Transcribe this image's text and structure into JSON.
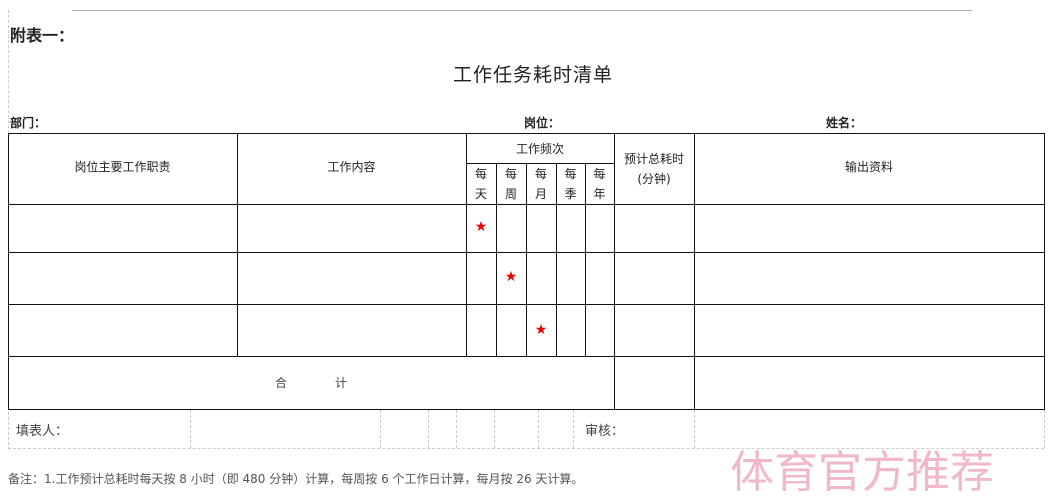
{
  "doc": {
    "appendix_label": "附表一：",
    "title": "工作任务耗时清单",
    "department_label": "部门：",
    "position_label": "岗位：",
    "name_label": "姓名：",
    "table": {
      "headers": {
        "duties": "岗位主要工作职责",
        "content": "工作内容",
        "frequency": "工作频次",
        "freq_cols": [
          "每天",
          "每周",
          "每月",
          "每季",
          "每年"
        ],
        "total_time": "预计总耗时(分钟)",
        "output": "输出资料"
      },
      "rows": [
        {
          "star_column": "每天",
          "mark": "★"
        },
        {
          "star_column": "每周",
          "mark": "★"
        },
        {
          "star_column": "每月",
          "mark": "★"
        }
      ],
      "total_label": "合　　　　计"
    },
    "filler_label": "填表人：",
    "reviewer_label": "审核：",
    "note": "备注：1.工作预计总耗时每天按 8 小时（即 480 分钟）计算，每周按 6 个工作日计算，每月按 26 天计算。",
    "watermark": "体育官方推荐",
    "colors": {
      "star": "#e00000",
      "watermark": "#f0b8c8"
    }
  }
}
